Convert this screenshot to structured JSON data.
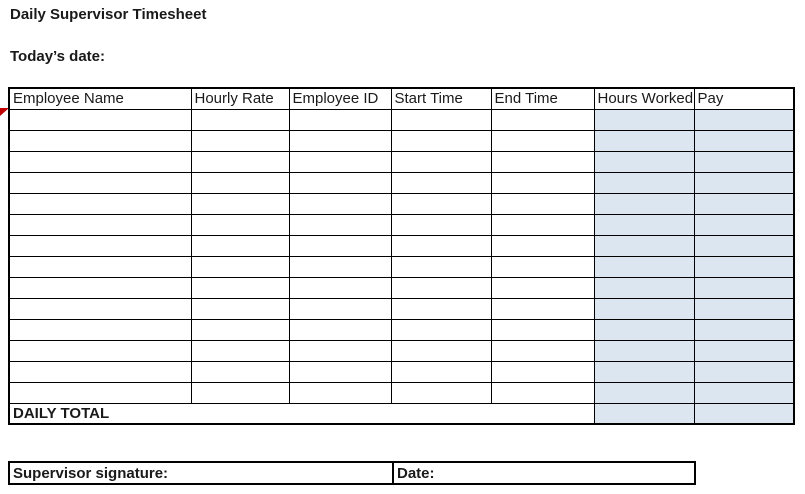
{
  "page": {
    "title": "Daily Supervisor Timesheet",
    "todays_date_label": "Today’s date:"
  },
  "table": {
    "headers": [
      "Employee Name",
      "Hourly Rate",
      "Employee ID",
      "Start Time",
      "End Time",
      "Hours Worked",
      "Pay"
    ],
    "row_count": 14,
    "highlight_columns": [
      "Hours Worked",
      "Pay"
    ],
    "highlight_color": "#dce6f1",
    "total_label": "DAILY TOTAL"
  },
  "footer": {
    "signature_label": "Supervisor signature:",
    "date_label": "Date:"
  },
  "marker": {
    "name": "comment-indicator",
    "color": "#c00000"
  }
}
